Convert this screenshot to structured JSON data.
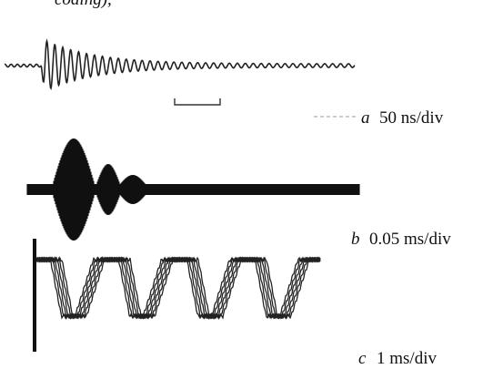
{
  "header": {
    "fragment": "coding),"
  },
  "panels": [
    {
      "letter": "a",
      "scale": "50 ns/div"
    },
    {
      "letter": "b",
      "scale": "0.05 ms/div"
    },
    {
      "letter": "c",
      "scale": "1 ms/div"
    }
  ]
}
